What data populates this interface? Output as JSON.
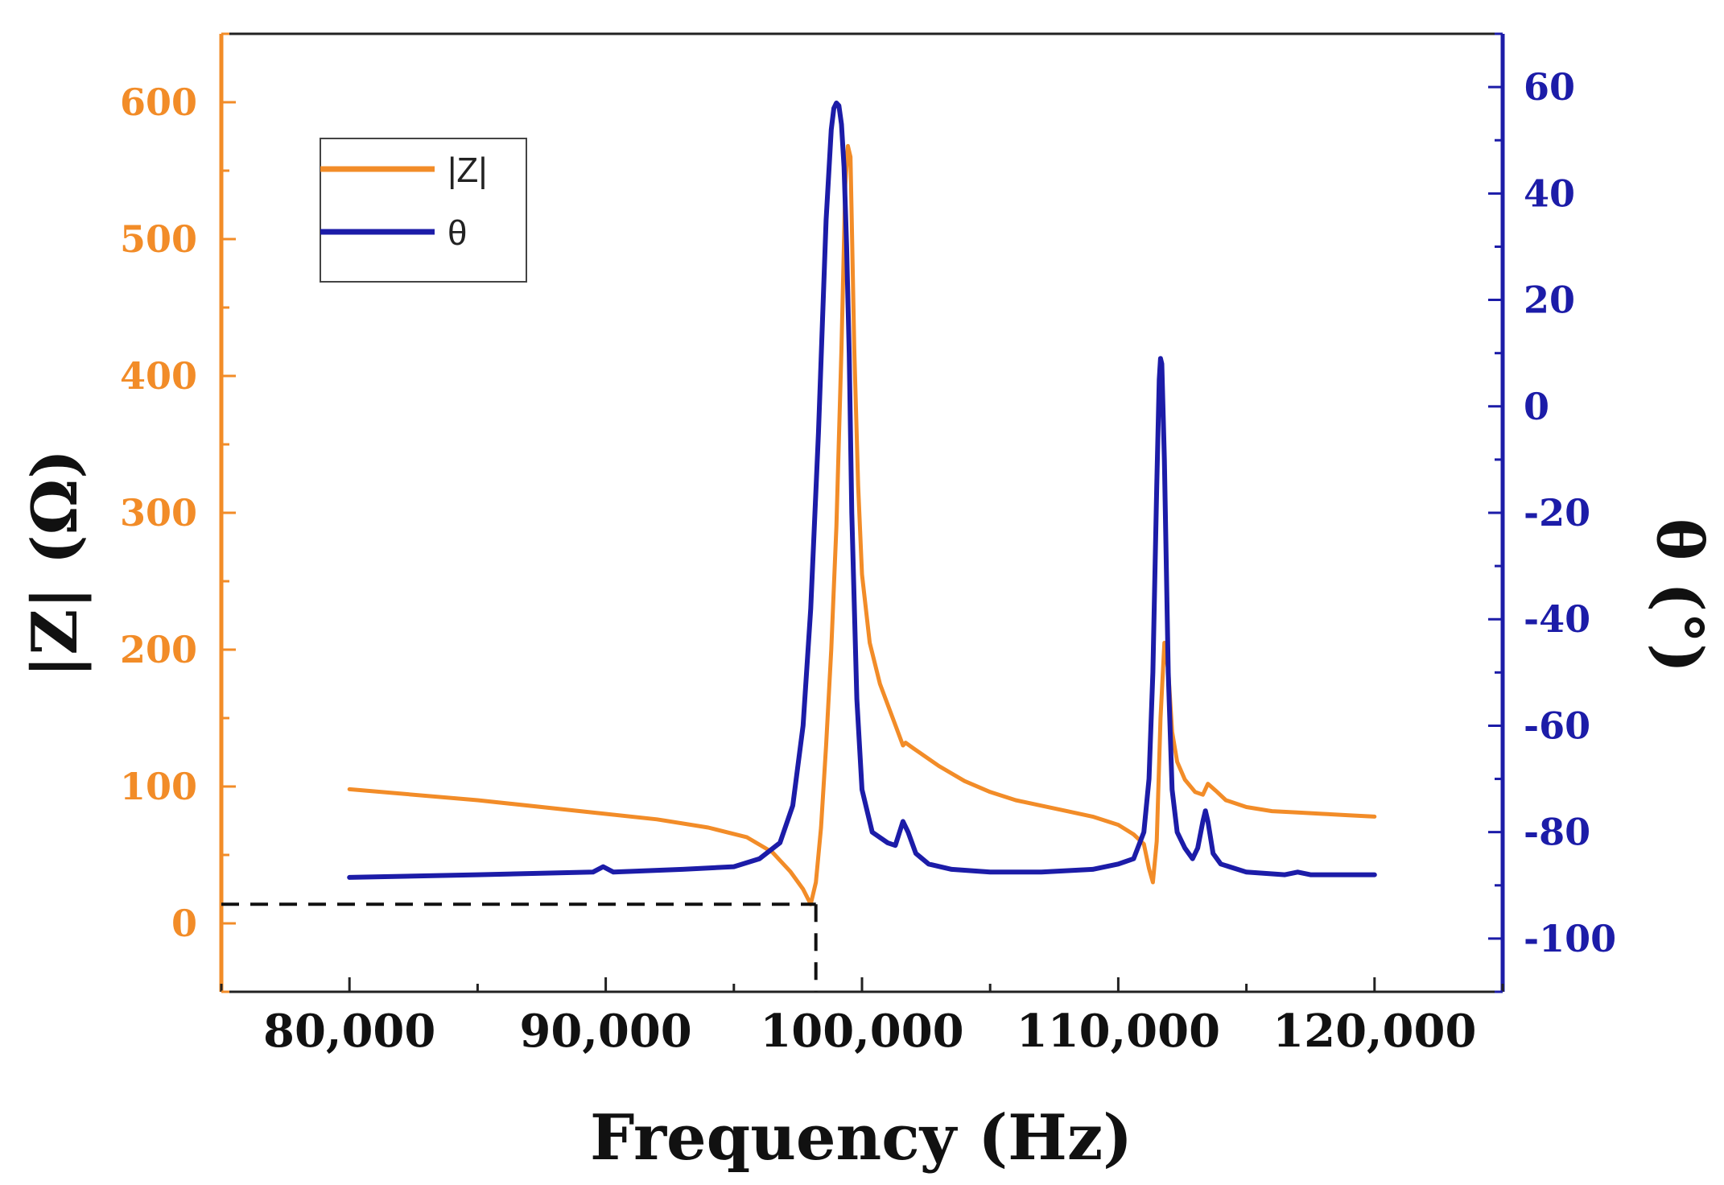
{
  "chart_data": {
    "type": "line",
    "xlabel": "Frequency (Hz)",
    "ylabel_left": "|Z| (Ω)",
    "ylabel_right": "θ (°)",
    "xlim": [
      75000,
      125000
    ],
    "ylim_left": [
      -50,
      650
    ],
    "ylim_right": [
      -110,
      70
    ],
    "x_ticks": [
      80000,
      90000,
      100000,
      110000,
      120000
    ],
    "x_tick_labels": [
      "80,000",
      "90,000",
      "100,000",
      "110,000",
      "120,000"
    ],
    "y_left_ticks": [
      0,
      100,
      200,
      300,
      400,
      500,
      600
    ],
    "y_left_tick_labels": [
      "0",
      "100",
      "200",
      "300",
      "400",
      "500",
      "600"
    ],
    "y_right_ticks": [
      -100,
      -80,
      -60,
      -40,
      -20,
      0,
      20,
      40,
      60
    ],
    "y_right_tick_labels": [
      "-100",
      "-80",
      "-60",
      "-40",
      "-20",
      "0",
      "20",
      "40",
      "60"
    ],
    "legend": [
      "|Z|",
      "θ"
    ],
    "legend_position": "top-left",
    "colors": {
      "Z": "#f28c28",
      "theta": "#1c1ca8",
      "reference_line": "#111111"
    },
    "series": [
      {
        "name": "|Z|",
        "axis": "left",
        "x": [
          80000,
          85000,
          90000,
          92000,
          94000,
          95500,
          96500,
          97200,
          97700,
          98000,
          98200,
          98400,
          98600,
          98800,
          99000,
          99200,
          99350,
          99450,
          99550,
          99700,
          99850,
          100000,
          100300,
          100700,
          101200,
          101600,
          101700,
          102000,
          103000,
          104000,
          105000,
          106000,
          107000,
          108000,
          109000,
          110000,
          110600,
          111000,
          111200,
          111350,
          111500,
          111650,
          111800,
          111950,
          112100,
          112300,
          112600,
          113000,
          113300,
          113500,
          113800,
          114200,
          115000,
          116000,
          117000,
          118000,
          119000,
          120000
        ],
        "values": [
          98,
          90,
          80,
          76,
          70,
          63,
          52,
          38,
          25,
          14,
          30,
          70,
          130,
          200,
          290,
          420,
          540,
          568,
          560,
          420,
          320,
          255,
          205,
          175,
          150,
          130,
          132,
          128,
          115,
          104,
          96,
          90,
          86,
          82,
          78,
          72,
          65,
          58,
          40,
          30,
          60,
          150,
          205,
          185,
          140,
          118,
          105,
          96,
          94,
          102,
          97,
          90,
          85,
          82,
          81,
          80,
          79,
          78
        ]
      },
      {
        "name": "θ",
        "axis": "right",
        "x": [
          80000,
          85000,
          89500,
          89900,
          90300,
          93000,
          95000,
          96000,
          96800,
          97300,
          97700,
          98000,
          98300,
          98600,
          98800,
          98900,
          99000,
          99100,
          99200,
          99300,
          99400,
          99500,
          99600,
          99800,
          100000,
          100400,
          101000,
          101300,
          101600,
          101800,
          102100,
          102600,
          103500,
          105000,
          107000,
          109000,
          110000,
          110600,
          111000,
          111200,
          111350,
          111500,
          111600,
          111650,
          111700,
          111800,
          111950,
          112100,
          112300,
          112600,
          112900,
          113100,
          113300,
          113400,
          113500,
          113700,
          114000,
          115000,
          116500,
          117000,
          117500,
          120000
        ],
        "values": [
          -88.5,
          -88,
          -87.5,
          -86.5,
          -87.5,
          -87,
          -86.5,
          -85,
          -82,
          -75,
          -60,
          -38,
          -5,
          35,
          52,
          56,
          57,
          56.5,
          53,
          45,
          30,
          10,
          -20,
          -55,
          -72,
          -80,
          -82,
          -82.5,
          -78,
          -80,
          -84,
          -86,
          -87,
          -87.5,
          -87.5,
          -87,
          -86,
          -85,
          -80,
          -70,
          -50,
          -15,
          5,
          9,
          8,
          -10,
          -50,
          -72,
          -80,
          -83,
          -85,
          -83,
          -78,
          -76,
          -78,
          -84,
          -86,
          -87.5,
          -88,
          -87.5,
          -88,
          -88
        ]
      }
    ],
    "reference_line": {
      "x": 98200,
      "y": 14
    }
  }
}
